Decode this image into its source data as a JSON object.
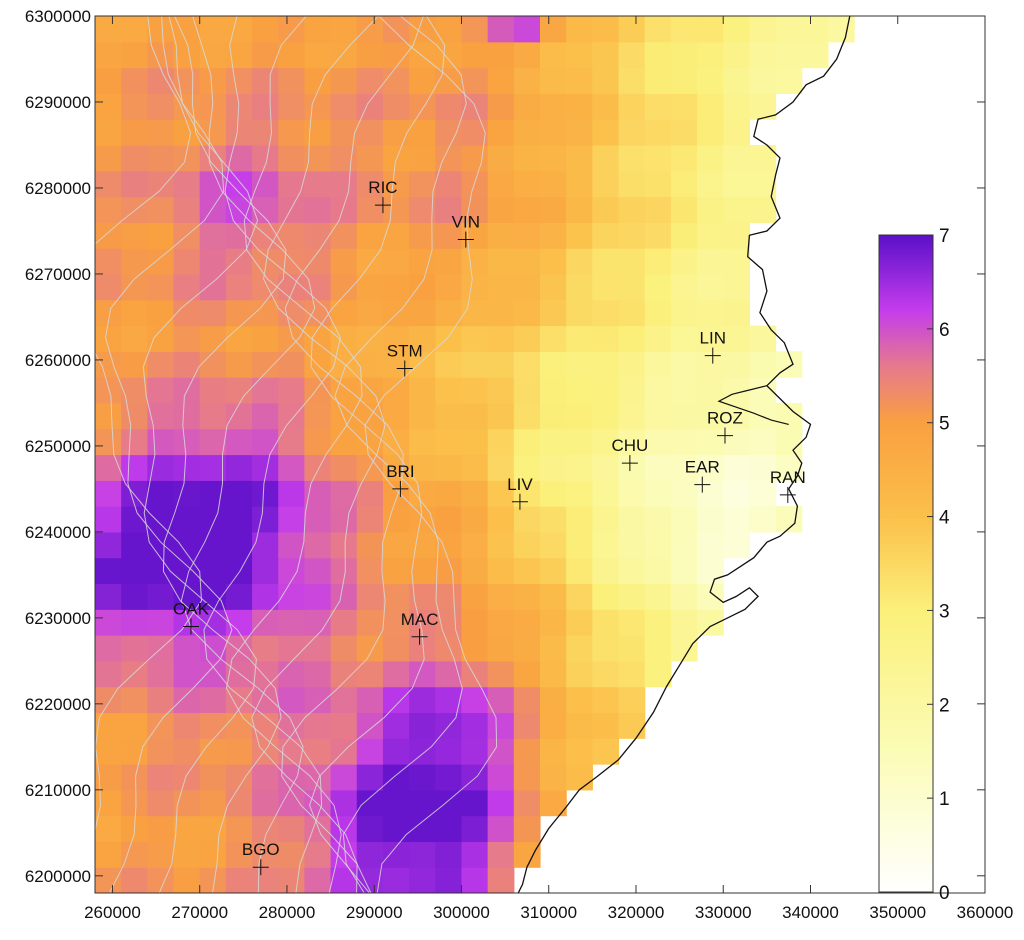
{
  "chart_data": {
    "type": "heatmap",
    "title": "",
    "xlabel": "",
    "ylabel": "",
    "xlim": [
      258000,
      360000
    ],
    "ylim": [
      6198000,
      6300000
    ],
    "x_ticks": [
      260000,
      270000,
      280000,
      290000,
      300000,
      310000,
      320000,
      330000,
      340000,
      350000,
      360000
    ],
    "y_ticks": [
      6200000,
      6210000,
      6220000,
      6230000,
      6240000,
      6250000,
      6260000,
      6270000,
      6280000,
      6290000,
      6300000
    ],
    "x_tick_labels": [
      "260000",
      "270000",
      "280000",
      "290000",
      "300000",
      "310000",
      "320000",
      "330000",
      "340000",
      "350000",
      "360000"
    ],
    "y_tick_labels": [
      "6200000",
      "6210000",
      "6220000",
      "6230000",
      "6240000",
      "6250000",
      "6260000",
      "6270000",
      "6280000",
      "6290000",
      "6300000"
    ],
    "grid": false,
    "colorbar": {
      "min": 0,
      "max": 7,
      "ticks": [
        0,
        1,
        2,
        3,
        4,
        5,
        6,
        7
      ],
      "tick_labels": [
        "0",
        "1",
        "2",
        "3",
        "4",
        "5",
        "6",
        "7"
      ],
      "placement": "right-inside",
      "color_stops": [
        {
          "value": 0,
          "color": "#ffffff"
        },
        {
          "value": 1.5,
          "color": "#fbfcb6"
        },
        {
          "value": 3,
          "color": "#fbf07a"
        },
        {
          "value": 4,
          "color": "#fbc04a"
        },
        {
          "value": 5,
          "color": "#f9a040"
        },
        {
          "value": 5.6,
          "color": "#e67a8c"
        },
        {
          "value": 6.2,
          "color": "#c43cec"
        },
        {
          "value": 7,
          "color": "#5a10c8"
        }
      ]
    },
    "stations": [
      {
        "name": "RIC",
        "x": 291000,
        "y": 6278000
      },
      {
        "name": "VIN",
        "x": 300500,
        "y": 6274000
      },
      {
        "name": "STM",
        "x": 293500,
        "y": 6259000
      },
      {
        "name": "LIN",
        "x": 328800,
        "y": 6260500
      },
      {
        "name": "ROZ",
        "x": 330200,
        "y": 6251200
      },
      {
        "name": "CHU",
        "x": 319300,
        "y": 6248000
      },
      {
        "name": "EAR",
        "x": 327600,
        "y": 6245500
      },
      {
        "name": "RAN",
        "x": 337400,
        "y": 6244300
      },
      {
        "name": "BRI",
        "x": 293000,
        "y": 6245000
      },
      {
        "name": "LIV",
        "x": 306700,
        "y": 6243500
      },
      {
        "name": "OAK",
        "x": 269000,
        "y": 6229000
      },
      {
        "name": "MAC",
        "x": 295200,
        "y": 6227800
      },
      {
        "name": "BGO",
        "x": 277000,
        "y": 6201000
      }
    ],
    "coastline": [
      [
        344500,
        6300000
      ],
      [
        344000,
        6297500
      ],
      [
        343000,
        6295000
      ],
      [
        341500,
        6293000
      ],
      [
        339500,
        6292000
      ],
      [
        338000,
        6290000
      ],
      [
        336000,
        6288500
      ],
      [
        334000,
        6288000
      ],
      [
        333500,
        6286000
      ],
      [
        335000,
        6285000
      ],
      [
        336500,
        6283500
      ],
      [
        336000,
        6281500
      ],
      [
        335500,
        6279000
      ],
      [
        336500,
        6276500
      ],
      [
        335000,
        6275000
      ],
      [
        333000,
        6274500
      ],
      [
        332800,
        6272000
      ],
      [
        334500,
        6270500
      ],
      [
        335000,
        6268000
      ],
      [
        334200,
        6265500
      ],
      [
        335500,
        6263500
      ],
      [
        337000,
        6262000
      ],
      [
        338000,
        6259500
      ],
      [
        336500,
        6258500
      ],
      [
        335000,
        6257000
      ],
      [
        336500,
        6255500
      ],
      [
        338000,
        6254000
      ],
      [
        340000,
        6252500
      ],
      [
        339500,
        6251000
      ],
      [
        338000,
        6249500
      ],
      [
        339000,
        6248000
      ],
      [
        338500,
        6246500
      ],
      [
        337500,
        6245000
      ],
      [
        338500,
        6243000
      ],
      [
        338200,
        6241000
      ],
      [
        336500,
        6239500
      ],
      [
        335000,
        6238800
      ],
      [
        333500,
        6237000
      ],
      [
        332000,
        6236000
      ],
      [
        330500,
        6235000
      ],
      [
        329000,
        6234500
      ],
      [
        328500,
        6233000
      ],
      [
        330000,
        6231800
      ],
      [
        331500,
        6232500
      ],
      [
        333000,
        6233500
      ],
      [
        334000,
        6232500
      ],
      [
        332500,
        6231000
      ],
      [
        330500,
        6230000
      ],
      [
        328500,
        6229000
      ],
      [
        326500,
        6227000
      ],
      [
        325000,
        6224500
      ],
      [
        323500,
        6222000
      ],
      [
        322000,
        6219000
      ],
      [
        320000,
        6216000
      ],
      [
        318000,
        6213500
      ],
      [
        315500,
        6211500
      ],
      [
        313500,
        6210000
      ],
      [
        312000,
        6208000
      ],
      [
        310000,
        6205500
      ],
      [
        308500,
        6203000
      ],
      [
        307500,
        6201000
      ],
      [
        307000,
        6199000
      ],
      [
        306500,
        6198000
      ]
    ],
    "harbour_outline": [
      [
        335000,
        6257000
      ],
      [
        333000,
        6256500
      ],
      [
        331000,
        6256000
      ],
      [
        329500,
        6255200
      ],
      [
        331500,
        6254500
      ],
      [
        333500,
        6253800
      ],
      [
        335500,
        6253000
      ],
      [
        337500,
        6252500
      ]
    ]
  }
}
